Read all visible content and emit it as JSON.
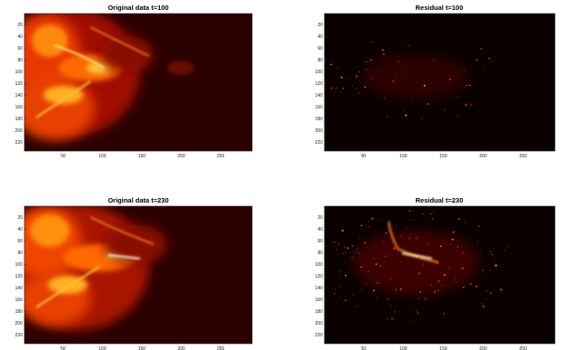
{
  "chart_data": [
    {
      "type": "heatmap",
      "title": "Original data t=100",
      "x_ticks": [
        50,
        100,
        150,
        200,
        250
      ],
      "y_ticks": [
        20,
        40,
        60,
        80,
        100,
        120,
        140,
        160,
        180,
        200,
        220
      ],
      "xlim": [
        1,
        290
      ],
      "ylim": [
        1,
        235
      ],
      "colormap": "hot",
      "content": "original",
      "t": 100
    },
    {
      "type": "heatmap",
      "title": "Residual t=100",
      "x_ticks": [
        50,
        100,
        150,
        200,
        250
      ],
      "y_ticks": [
        20,
        40,
        60,
        80,
        100,
        120,
        140,
        160,
        180,
        200,
        220
      ],
      "xlim": [
        1,
        290
      ],
      "ylim": [
        1,
        235
      ],
      "colormap": "hot",
      "content": "residual",
      "t": 100
    },
    {
      "type": "heatmap",
      "title": "Original data t=230",
      "x_ticks": [
        50,
        100,
        150,
        200,
        250
      ],
      "y_ticks": [
        20,
        40,
        60,
        80,
        100,
        120,
        140,
        160,
        180,
        200,
        220
      ],
      "xlim": [
        1,
        290
      ],
      "ylim": [
        1,
        235
      ],
      "colormap": "hot",
      "content": "original",
      "t": 230
    },
    {
      "type": "heatmap",
      "title": "Residual t=230",
      "x_ticks": [
        50,
        100,
        150,
        200,
        250
      ],
      "y_ticks": [
        20,
        40,
        60,
        80,
        100,
        120,
        140,
        160,
        180,
        200,
        220
      ],
      "xlim": [
        1,
        290
      ],
      "ylim": [
        1,
        235
      ],
      "colormap": "hot",
      "content": "residual",
      "t": 230
    }
  ],
  "colors": {
    "background": "#ffffff",
    "map_dark": "#2a0000",
    "map_red": "#c81e00",
    "map_orange": "#ff7a00",
    "map_yellow": "#fff060"
  }
}
